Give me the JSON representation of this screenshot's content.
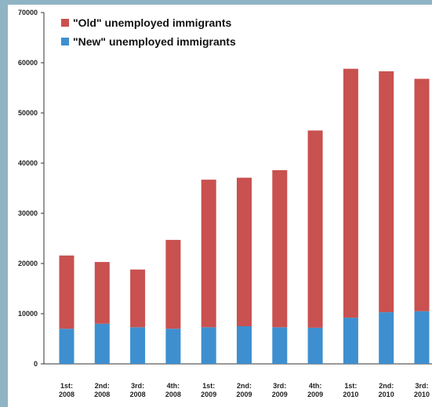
{
  "chart_data": {
    "type": "bar",
    "stacked": true,
    "categories": [
      [
        "1st:",
        "2008"
      ],
      [
        "2nd:",
        "2008"
      ],
      [
        "3rd:",
        "2008"
      ],
      [
        "4th:",
        "2008"
      ],
      [
        "1st:",
        "2009"
      ],
      [
        "2nd:",
        "2009"
      ],
      [
        "3rd:",
        "2009"
      ],
      [
        "4th:",
        "2009"
      ],
      [
        "1st:",
        "2010"
      ],
      [
        "2nd:",
        "2010"
      ],
      [
        "3rd:",
        "2010"
      ]
    ],
    "series": [
      {
        "name": "\"New\" unemployed immigrants",
        "color": "#3e8fcf",
        "values": [
          7000,
          8000,
          7300,
          7000,
          7300,
          7500,
          7300,
          7200,
          9200,
          10300,
          10500
        ]
      },
      {
        "name": "\"Old\" unemployed immigrants",
        "color": "#c9514f",
        "values": [
          14600,
          12300,
          11500,
          17700,
          29400,
          29600,
          31300,
          39300,
          49600,
          48000,
          46300
        ]
      }
    ],
    "legend_order": [
      1,
      0
    ],
    "legend_position": "top-left",
    "ylim": [
      0,
      70000
    ],
    "yticks": [
      0,
      10000,
      20000,
      30000,
      40000,
      50000,
      60000,
      70000
    ],
    "grid": false,
    "title": "",
    "xlabel": "",
    "ylabel": ""
  }
}
